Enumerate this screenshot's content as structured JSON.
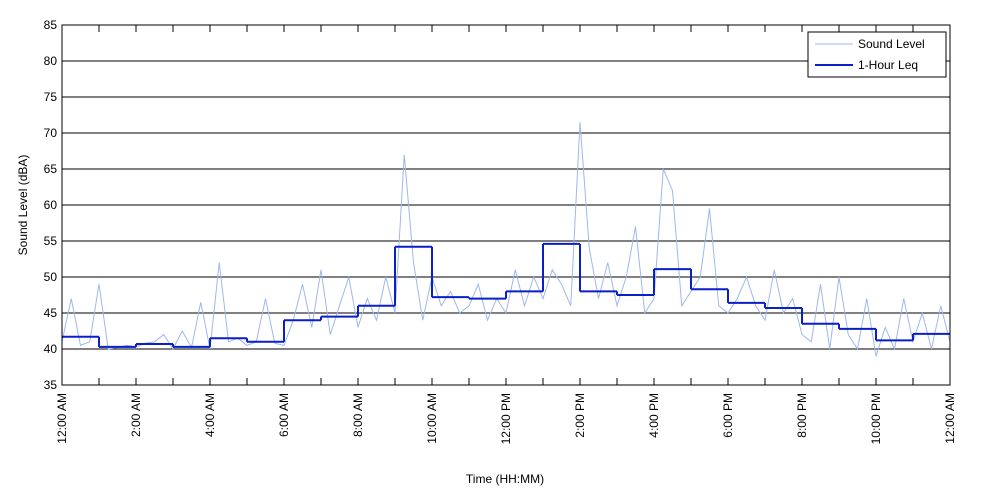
{
  "chart_data": {
    "type": "line",
    "xlabel": "Time (HH:MM)",
    "ylabel": "Sound Level (dBA)",
    "xlim": [
      0,
      24
    ],
    "ylim": [
      35,
      85
    ],
    "yticks": [
      35,
      40,
      45,
      50,
      55,
      60,
      65,
      70,
      75,
      80,
      85
    ],
    "xticks": [
      {
        "value": 0,
        "label": "12:00 AM"
      },
      {
        "value": 2,
        "label": "2:00 AM"
      },
      {
        "value": 4,
        "label": "4:00 AM"
      },
      {
        "value": 6,
        "label": "6:00 AM"
      },
      {
        "value": 8,
        "label": "8:00 AM"
      },
      {
        "value": 10,
        "label": "10:00 AM"
      },
      {
        "value": 12,
        "label": "12:00 PM"
      },
      {
        "value": 14,
        "label": "2:00 PM"
      },
      {
        "value": 16,
        "label": "4:00 PM"
      },
      {
        "value": 18,
        "label": "6:00 PM"
      },
      {
        "value": 20,
        "label": "8:00 PM"
      },
      {
        "value": 22,
        "label": "10:00 PM"
      },
      {
        "value": 24,
        "label": "12:00 AM"
      }
    ],
    "xminor_ticks": [
      1,
      3,
      5,
      7,
      9,
      11,
      13,
      15,
      17,
      19,
      21,
      23
    ],
    "grid": true,
    "legend": "upper right",
    "series": [
      {
        "name": "Sound Level",
        "color": "#9db8ee",
        "x": [
          0,
          0.25,
          0.5,
          0.75,
          1,
          1.25,
          1.5,
          1.75,
          2,
          2.25,
          2.5,
          2.75,
          3,
          3.25,
          3.5,
          3.75,
          4,
          4.25,
          4.5,
          4.75,
          5,
          5.25,
          5.5,
          5.75,
          6,
          6.25,
          6.5,
          6.75,
          7,
          7.25,
          7.5,
          7.75,
          8,
          8.25,
          8.5,
          8.75,
          9,
          9.25,
          9.5,
          9.75,
          10,
          10.25,
          10.5,
          10.75,
          11,
          11.25,
          11.5,
          11.75,
          12,
          12.25,
          12.5,
          12.75,
          13,
          13.25,
          13.5,
          13.75,
          14,
          14.25,
          14.5,
          14.75,
          15,
          15.25,
          15.5,
          15.75,
          16,
          16.25,
          16.5,
          16.75,
          17,
          17.25,
          17.5,
          17.75,
          18,
          18.25,
          18.5,
          18.75,
          19,
          19.25,
          19.5,
          19.75,
          20,
          20.25,
          20.5,
          20.75,
          21,
          21.25,
          21.5,
          21.75,
          22,
          22.25,
          22.5,
          22.75,
          23,
          23.25,
          23.5,
          23.75,
          24
        ],
        "values": [
          41,
          47,
          40.5,
          41,
          49,
          40,
          40.2,
          40.5,
          40.3,
          40.8,
          41,
          42,
          40,
          42.5,
          40.2,
          46.5,
          40,
          52,
          41,
          41.5,
          40.5,
          41,
          47,
          40.8,
          40.5,
          44,
          49,
          43,
          51,
          42,
          46,
          50,
          43,
          47,
          44,
          50,
          45,
          67,
          52,
          44,
          50,
          46,
          48,
          45,
          46,
          49,
          44,
          47,
          45,
          51,
          46,
          50,
          47,
          51,
          49,
          46,
          71.5,
          54,
          47,
          52,
          46,
          50,
          57,
          45,
          47,
          65,
          62,
          46,
          48,
          50,
          59.5,
          46,
          45,
          47,
          50,
          46,
          44,
          51,
          45,
          47,
          42,
          41,
          49,
          40,
          50,
          42,
          40,
          47,
          39,
          43,
          40,
          47,
          41,
          45,
          40,
          46,
          41
        ]
      },
      {
        "name": "1-Hour Leq",
        "color": "#0a1fc8",
        "bins": [
          0,
          1,
          2,
          3,
          4,
          5,
          6,
          7,
          8,
          9,
          10,
          11,
          12,
          13,
          14,
          15,
          16,
          17,
          18,
          19,
          20,
          21,
          22,
          23,
          24
        ],
        "values": [
          41.7,
          40.3,
          40.7,
          40.3,
          41.5,
          41.0,
          44.0,
          44.5,
          46.0,
          54.2,
          47.2,
          47.0,
          48.0,
          54.6,
          48.0,
          47.5,
          51.1,
          48.3,
          46.4,
          45.7,
          43.5,
          42.8,
          41.2,
          42.1
        ]
      }
    ]
  }
}
